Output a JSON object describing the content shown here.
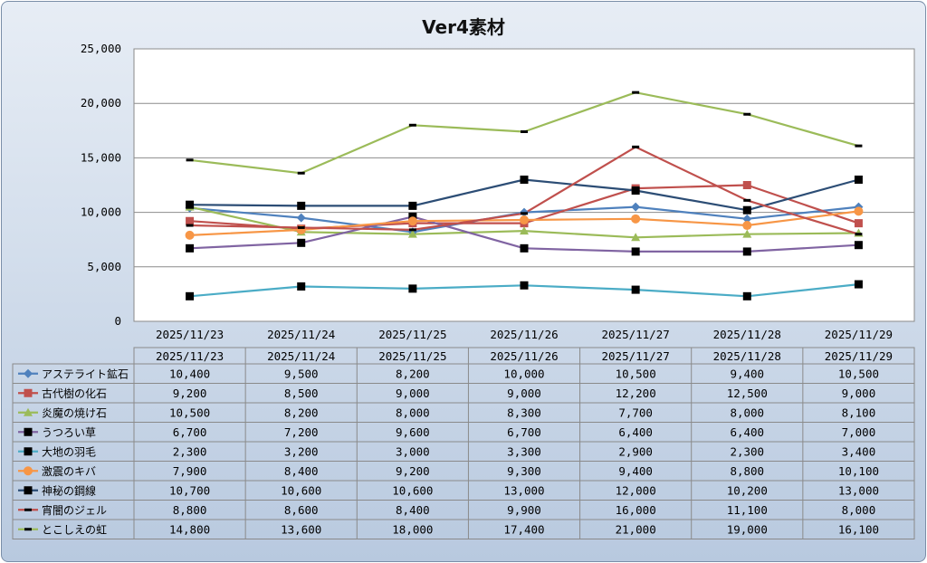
{
  "chart_data": {
    "type": "line",
    "title": "Ver4素材",
    "xlabel": "",
    "ylabel": "",
    "ylim": [
      0,
      25000
    ],
    "yticks": [
      0,
      5000,
      10000,
      15000,
      20000,
      25000
    ],
    "ytick_labels": [
      "0",
      "5,000",
      "10,000",
      "15,000",
      "20,000",
      "25,000"
    ],
    "grid": true,
    "legend": "data-table-below",
    "categories": [
      "2025/11/23",
      "2025/11/24",
      "2025/11/25",
      "2025/11/26",
      "2025/11/27",
      "2025/11/28",
      "2025/11/29"
    ],
    "series": [
      {
        "name": "アステライト鉱石",
        "color": "#4f81bd",
        "marker": "diamond",
        "values": [
          10400,
          9500,
          8200,
          10000,
          10500,
          9400,
          10500
        ],
        "labels": [
          "10,400",
          "9,500",
          "8,200",
          "10,000",
          "10,500",
          "9,400",
          "10,500"
        ]
      },
      {
        "name": "古代樹の化石",
        "color": "#c0504d",
        "marker": "square",
        "values": [
          9200,
          8500,
          9000,
          9000,
          12200,
          12500,
          9000
        ],
        "labels": [
          "9,200",
          "8,500",
          "9,000",
          "9,000",
          "12,200",
          "12,500",
          "9,000"
        ]
      },
      {
        "name": "炎魔の焼け石",
        "color": "#9bbb59",
        "marker": "triangle",
        "values": [
          10500,
          8200,
          8000,
          8300,
          7700,
          8000,
          8100
        ],
        "labels": [
          "10,500",
          "8,200",
          "8,000",
          "8,300",
          "7,700",
          "8,000",
          "8,100"
        ]
      },
      {
        "name": "うつろい草",
        "color": "#8064a2",
        "marker": "blacksquare",
        "values": [
          6700,
          7200,
          9600,
          6700,
          6400,
          6400,
          7000
        ],
        "labels": [
          "6,700",
          "7,200",
          "9,600",
          "6,700",
          "6,400",
          "6,400",
          "7,000"
        ]
      },
      {
        "name": "大地の羽毛",
        "color": "#4bacc6",
        "marker": "blacksquare",
        "values": [
          2300,
          3200,
          3000,
          3300,
          2900,
          2300,
          3400
        ],
        "labels": [
          "2,300",
          "3,200",
          "3,000",
          "3,300",
          "2,900",
          "2,300",
          "3,400"
        ]
      },
      {
        "name": "激震のキバ",
        "color": "#f79646",
        "marker": "circle",
        "values": [
          7900,
          8400,
          9200,
          9300,
          9400,
          8800,
          10100
        ],
        "labels": [
          "7,900",
          "8,400",
          "9,200",
          "9,300",
          "9,400",
          "8,800",
          "10,100"
        ]
      },
      {
        "name": "神秘の鋼線",
        "color": "#2c4d75",
        "marker": "blacksquare",
        "values": [
          10700,
          10600,
          10600,
          13000,
          12000,
          10200,
          13000
        ],
        "labels": [
          "10,700",
          "10,600",
          "10,600",
          "13,000",
          "12,000",
          "10,200",
          "13,000"
        ]
      },
      {
        "name": "宵闇のジェル",
        "color": "#c0504d",
        "marker": "dash",
        "values": [
          8800,
          8600,
          8400,
          9900,
          16000,
          11100,
          8000
        ],
        "labels": [
          "8,800",
          "8,600",
          "8,400",
          "9,900",
          "16,000",
          "11,100",
          "8,000"
        ]
      },
      {
        "name": "とこしえの虹",
        "color": "#9bbb59",
        "marker": "dash",
        "values": [
          14800,
          13600,
          18000,
          17400,
          21000,
          19000,
          16100
        ],
        "labels": [
          "14,800",
          "13,600",
          "18,000",
          "17,400",
          "21,000",
          "19,000",
          "16,100"
        ]
      }
    ]
  }
}
